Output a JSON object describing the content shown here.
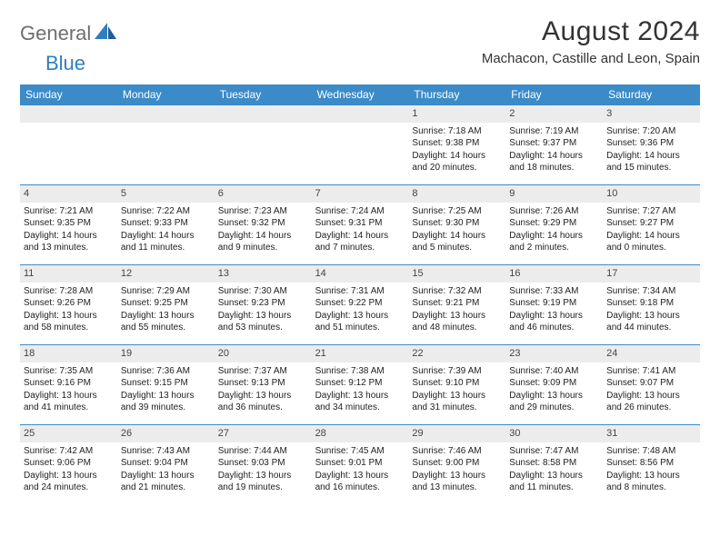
{
  "brand": {
    "word1": "General",
    "word2": "Blue"
  },
  "title": "August 2024",
  "location": "Machacon, Castille and Leon, Spain",
  "colors": {
    "header_bg": "#3b8bc9",
    "header_text": "#ffffff",
    "daybar_bg": "#ececec",
    "rule": "#3b8bc9",
    "brand_gray": "#6e6e6e",
    "brand_blue": "#2f7ec0",
    "body_text": "#222222",
    "page_bg": "#ffffff"
  },
  "typography": {
    "title_fontsize": 30,
    "location_fontsize": 15,
    "weekday_fontsize": 12,
    "daynum_fontsize": 11,
    "detail_fontsize": 10,
    "logo_fontsize": 22
  },
  "layout": {
    "columns": 7,
    "rows": 5,
    "leading_blanks": 4
  },
  "weekdays": [
    "Sunday",
    "Monday",
    "Tuesday",
    "Wednesday",
    "Thursday",
    "Friday",
    "Saturday"
  ],
  "days": [
    {
      "n": "1",
      "sr": "Sunrise: 7:18 AM",
      "ss": "Sunset: 9:38 PM",
      "dl": "Daylight: 14 hours and 20 minutes."
    },
    {
      "n": "2",
      "sr": "Sunrise: 7:19 AM",
      "ss": "Sunset: 9:37 PM",
      "dl": "Daylight: 14 hours and 18 minutes."
    },
    {
      "n": "3",
      "sr": "Sunrise: 7:20 AM",
      "ss": "Sunset: 9:36 PM",
      "dl": "Daylight: 14 hours and 15 minutes."
    },
    {
      "n": "4",
      "sr": "Sunrise: 7:21 AM",
      "ss": "Sunset: 9:35 PM",
      "dl": "Daylight: 14 hours and 13 minutes."
    },
    {
      "n": "5",
      "sr": "Sunrise: 7:22 AM",
      "ss": "Sunset: 9:33 PM",
      "dl": "Daylight: 14 hours and 11 minutes."
    },
    {
      "n": "6",
      "sr": "Sunrise: 7:23 AM",
      "ss": "Sunset: 9:32 PM",
      "dl": "Daylight: 14 hours and 9 minutes."
    },
    {
      "n": "7",
      "sr": "Sunrise: 7:24 AM",
      "ss": "Sunset: 9:31 PM",
      "dl": "Daylight: 14 hours and 7 minutes."
    },
    {
      "n": "8",
      "sr": "Sunrise: 7:25 AM",
      "ss": "Sunset: 9:30 PM",
      "dl": "Daylight: 14 hours and 5 minutes."
    },
    {
      "n": "9",
      "sr": "Sunrise: 7:26 AM",
      "ss": "Sunset: 9:29 PM",
      "dl": "Daylight: 14 hours and 2 minutes."
    },
    {
      "n": "10",
      "sr": "Sunrise: 7:27 AM",
      "ss": "Sunset: 9:27 PM",
      "dl": "Daylight: 14 hours and 0 minutes."
    },
    {
      "n": "11",
      "sr": "Sunrise: 7:28 AM",
      "ss": "Sunset: 9:26 PM",
      "dl": "Daylight: 13 hours and 58 minutes."
    },
    {
      "n": "12",
      "sr": "Sunrise: 7:29 AM",
      "ss": "Sunset: 9:25 PM",
      "dl": "Daylight: 13 hours and 55 minutes."
    },
    {
      "n": "13",
      "sr": "Sunrise: 7:30 AM",
      "ss": "Sunset: 9:23 PM",
      "dl": "Daylight: 13 hours and 53 minutes."
    },
    {
      "n": "14",
      "sr": "Sunrise: 7:31 AM",
      "ss": "Sunset: 9:22 PM",
      "dl": "Daylight: 13 hours and 51 minutes."
    },
    {
      "n": "15",
      "sr": "Sunrise: 7:32 AM",
      "ss": "Sunset: 9:21 PM",
      "dl": "Daylight: 13 hours and 48 minutes."
    },
    {
      "n": "16",
      "sr": "Sunrise: 7:33 AM",
      "ss": "Sunset: 9:19 PM",
      "dl": "Daylight: 13 hours and 46 minutes."
    },
    {
      "n": "17",
      "sr": "Sunrise: 7:34 AM",
      "ss": "Sunset: 9:18 PM",
      "dl": "Daylight: 13 hours and 44 minutes."
    },
    {
      "n": "18",
      "sr": "Sunrise: 7:35 AM",
      "ss": "Sunset: 9:16 PM",
      "dl": "Daylight: 13 hours and 41 minutes."
    },
    {
      "n": "19",
      "sr": "Sunrise: 7:36 AM",
      "ss": "Sunset: 9:15 PM",
      "dl": "Daylight: 13 hours and 39 minutes."
    },
    {
      "n": "20",
      "sr": "Sunrise: 7:37 AM",
      "ss": "Sunset: 9:13 PM",
      "dl": "Daylight: 13 hours and 36 minutes."
    },
    {
      "n": "21",
      "sr": "Sunrise: 7:38 AM",
      "ss": "Sunset: 9:12 PM",
      "dl": "Daylight: 13 hours and 34 minutes."
    },
    {
      "n": "22",
      "sr": "Sunrise: 7:39 AM",
      "ss": "Sunset: 9:10 PM",
      "dl": "Daylight: 13 hours and 31 minutes."
    },
    {
      "n": "23",
      "sr": "Sunrise: 7:40 AM",
      "ss": "Sunset: 9:09 PM",
      "dl": "Daylight: 13 hours and 29 minutes."
    },
    {
      "n": "24",
      "sr": "Sunrise: 7:41 AM",
      "ss": "Sunset: 9:07 PM",
      "dl": "Daylight: 13 hours and 26 minutes."
    },
    {
      "n": "25",
      "sr": "Sunrise: 7:42 AM",
      "ss": "Sunset: 9:06 PM",
      "dl": "Daylight: 13 hours and 24 minutes."
    },
    {
      "n": "26",
      "sr": "Sunrise: 7:43 AM",
      "ss": "Sunset: 9:04 PM",
      "dl": "Daylight: 13 hours and 21 minutes."
    },
    {
      "n": "27",
      "sr": "Sunrise: 7:44 AM",
      "ss": "Sunset: 9:03 PM",
      "dl": "Daylight: 13 hours and 19 minutes."
    },
    {
      "n": "28",
      "sr": "Sunrise: 7:45 AM",
      "ss": "Sunset: 9:01 PM",
      "dl": "Daylight: 13 hours and 16 minutes."
    },
    {
      "n": "29",
      "sr": "Sunrise: 7:46 AM",
      "ss": "Sunset: 9:00 PM",
      "dl": "Daylight: 13 hours and 13 minutes."
    },
    {
      "n": "30",
      "sr": "Sunrise: 7:47 AM",
      "ss": "Sunset: 8:58 PM",
      "dl": "Daylight: 13 hours and 11 minutes."
    },
    {
      "n": "31",
      "sr": "Sunrise: 7:48 AM",
      "ss": "Sunset: 8:56 PM",
      "dl": "Daylight: 13 hours and 8 minutes."
    }
  ]
}
